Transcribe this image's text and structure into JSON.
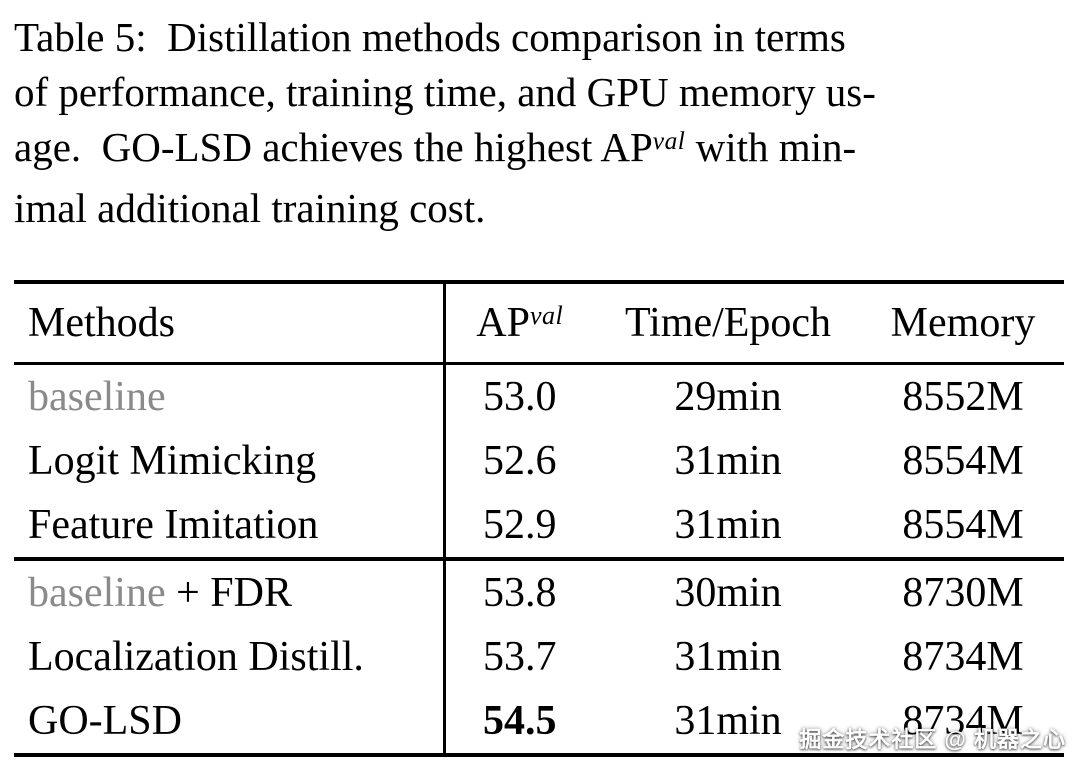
{
  "caption": {
    "line1": "Table 5:  Distillation methods comparison in terms",
    "line2": "of performance, training time, and GPU memory us-",
    "line3_pre": "age.  GO-LSD achieves the highest AP",
    "line3_sup": "val",
    "line3_post": " with min-",
    "line4": "imal additional training cost."
  },
  "table": {
    "headers": {
      "methods": "Methods",
      "ap_pre": "AP",
      "ap_sup": "val",
      "time": "Time/Epoch",
      "memory": "Memory"
    },
    "rows": [
      {
        "method_gray": "baseline",
        "method": "",
        "ap": "53.0",
        "time": "29min",
        "memory": "8552M",
        "ap_bold": false,
        "section_start": false
      },
      {
        "method_gray": "",
        "method": "Logit Mimicking",
        "ap": "52.6",
        "time": "31min",
        "memory": "8554M",
        "ap_bold": false,
        "section_start": false
      },
      {
        "method_gray": "",
        "method": "Feature Imitation",
        "ap": "52.9",
        "time": "31min",
        "memory": "8554M",
        "ap_bold": false,
        "section_start": false
      },
      {
        "method_gray": "baseline",
        "method": " + FDR",
        "ap": "53.8",
        "time": "30min",
        "memory": "8730M",
        "ap_bold": false,
        "section_start": true
      },
      {
        "method_gray": "",
        "method": "Localization Distill.",
        "ap": "53.7",
        "time": "31min",
        "memory": "8734M",
        "ap_bold": false,
        "section_start": false
      },
      {
        "method_gray": "",
        "method": "GO-LSD",
        "ap": "54.5",
        "time": "31min",
        "memory": "8734M",
        "ap_bold": true,
        "section_start": false
      }
    ]
  },
  "watermark": "掘金技术社区 @ 机器之心",
  "colors": {
    "text": "#000000",
    "muted": "#8a8a8a",
    "background": "#ffffff",
    "rule": "#000000"
  }
}
